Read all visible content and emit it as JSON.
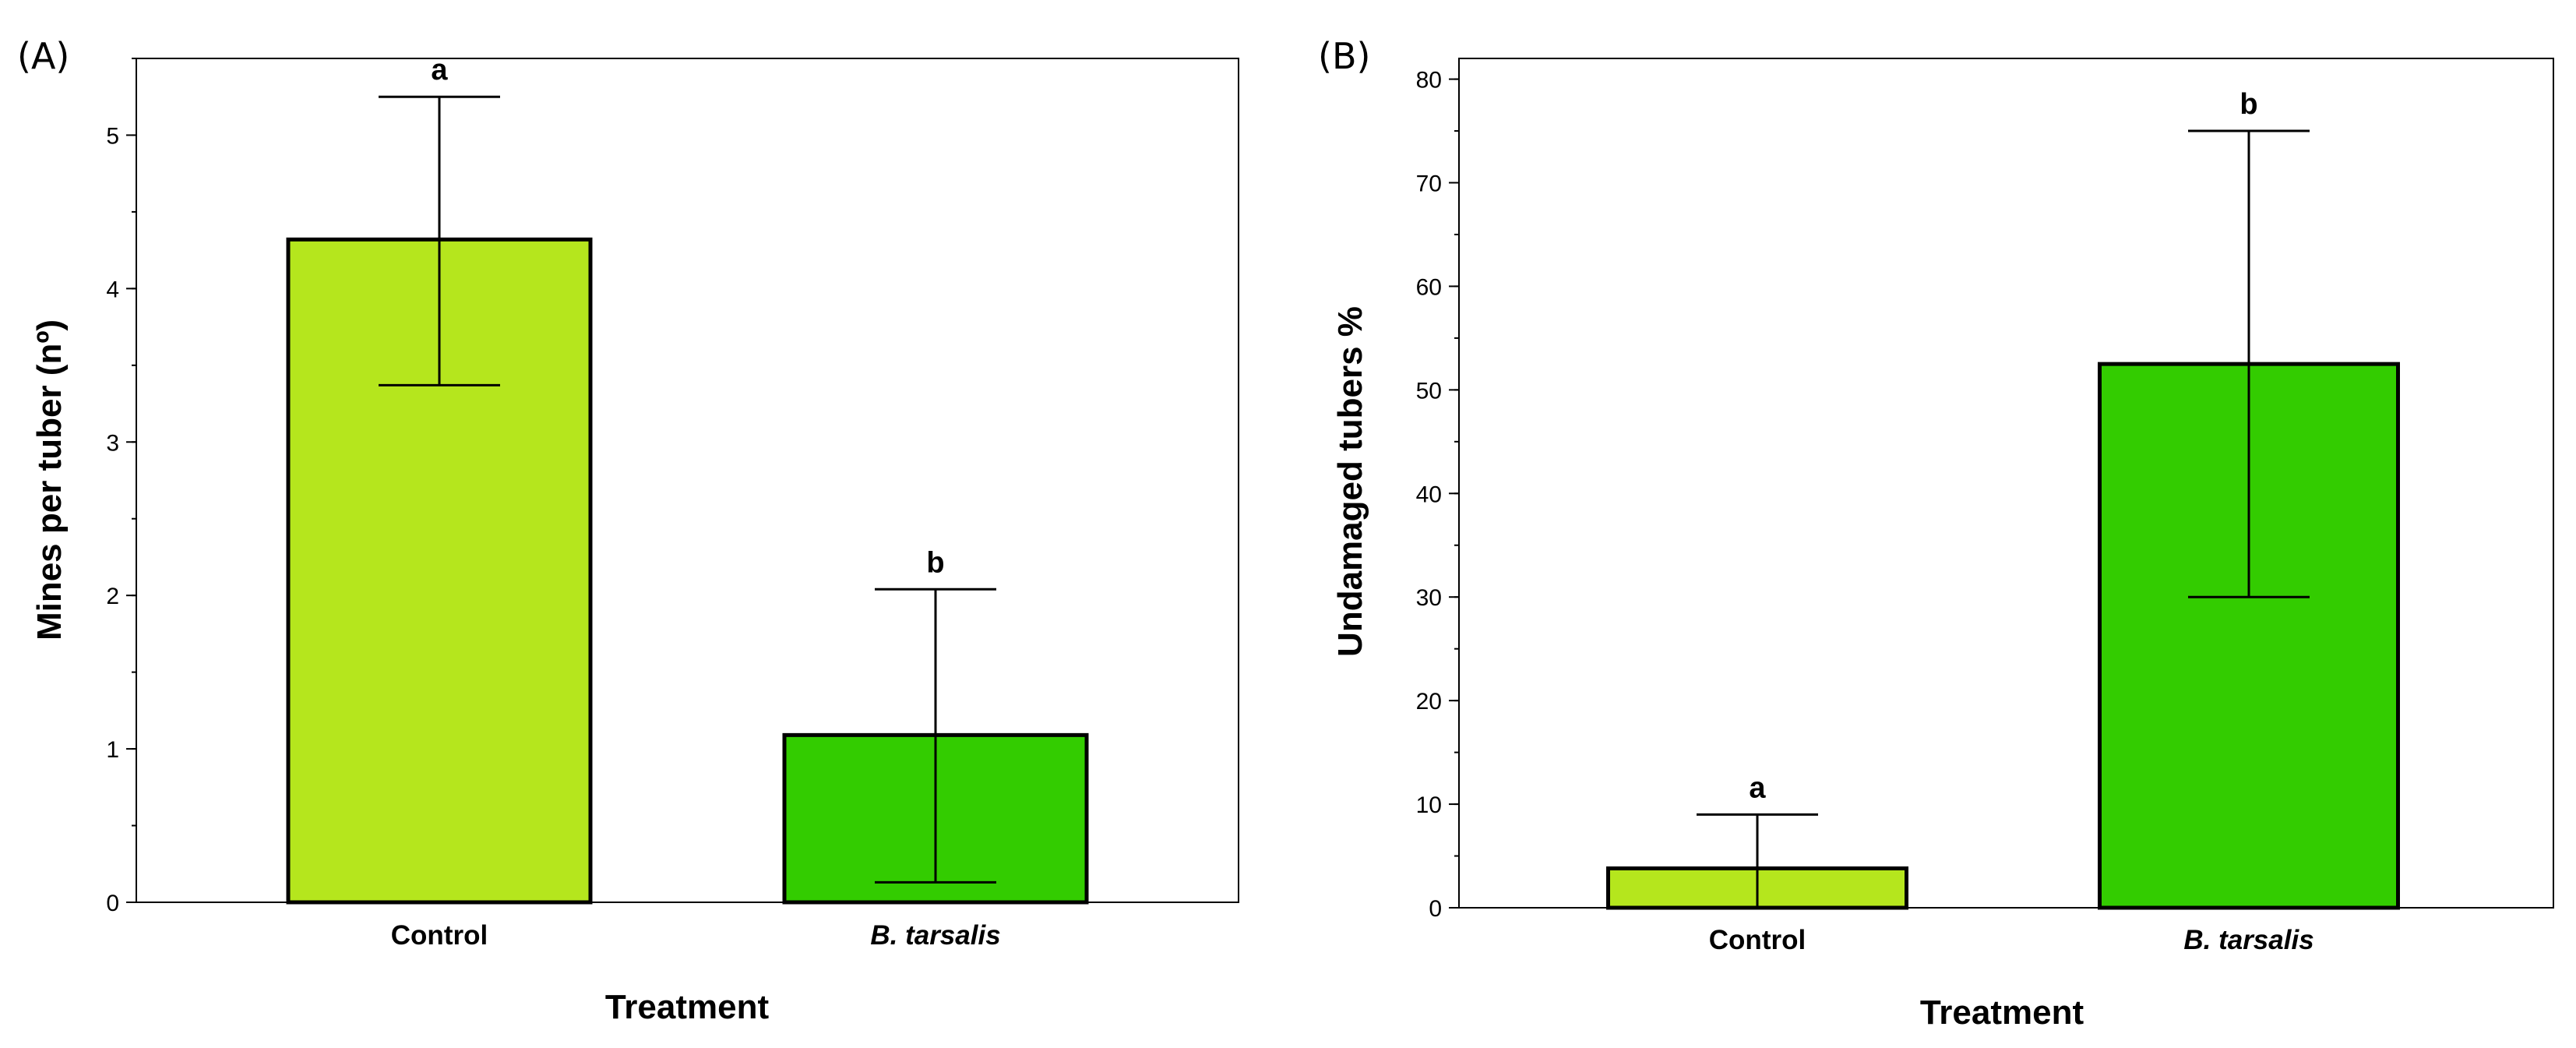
{
  "chart_data": [
    {
      "type": "bar",
      "panel_label": "(A)",
      "categories": [
        "Control",
        "B. tarsalis"
      ],
      "italic_categories": [
        false,
        true
      ],
      "values": [
        4.32,
        1.09
      ],
      "error_upper": [
        5.25,
        2.04
      ],
      "error_lower": [
        3.37,
        0.13
      ],
      "significance": [
        "a",
        "b"
      ],
      "colors": [
        "#b5e61d",
        "#33cc00"
      ],
      "ylabel": "Mines per tuber (nº)",
      "xlabel": "Treatment",
      "ylim": [
        0,
        5.5
      ],
      "yticks": [
        0,
        1,
        2,
        3,
        4,
        5
      ],
      "minor_step": 0.5,
      "grid": false
    },
    {
      "type": "bar",
      "panel_label": "(B)",
      "categories": [
        "Control",
        "B. tarsalis"
      ],
      "italic_categories": [
        false,
        true
      ],
      "values": [
        3.8,
        52.5
      ],
      "error_upper": [
        9.0,
        75.0
      ],
      "error_lower": [
        0,
        30.0
      ],
      "significance": [
        "a",
        "b"
      ],
      "colors": [
        "#b5e61d",
        "#33cc00"
      ],
      "ylabel": "Undamaged tubers %",
      "xlabel": "Treatment",
      "ylim": [
        0,
        82
      ],
      "yticks": [
        0,
        10,
        20,
        30,
        40,
        50,
        60,
        70,
        80
      ],
      "minor_step": 5,
      "grid": false
    }
  ]
}
